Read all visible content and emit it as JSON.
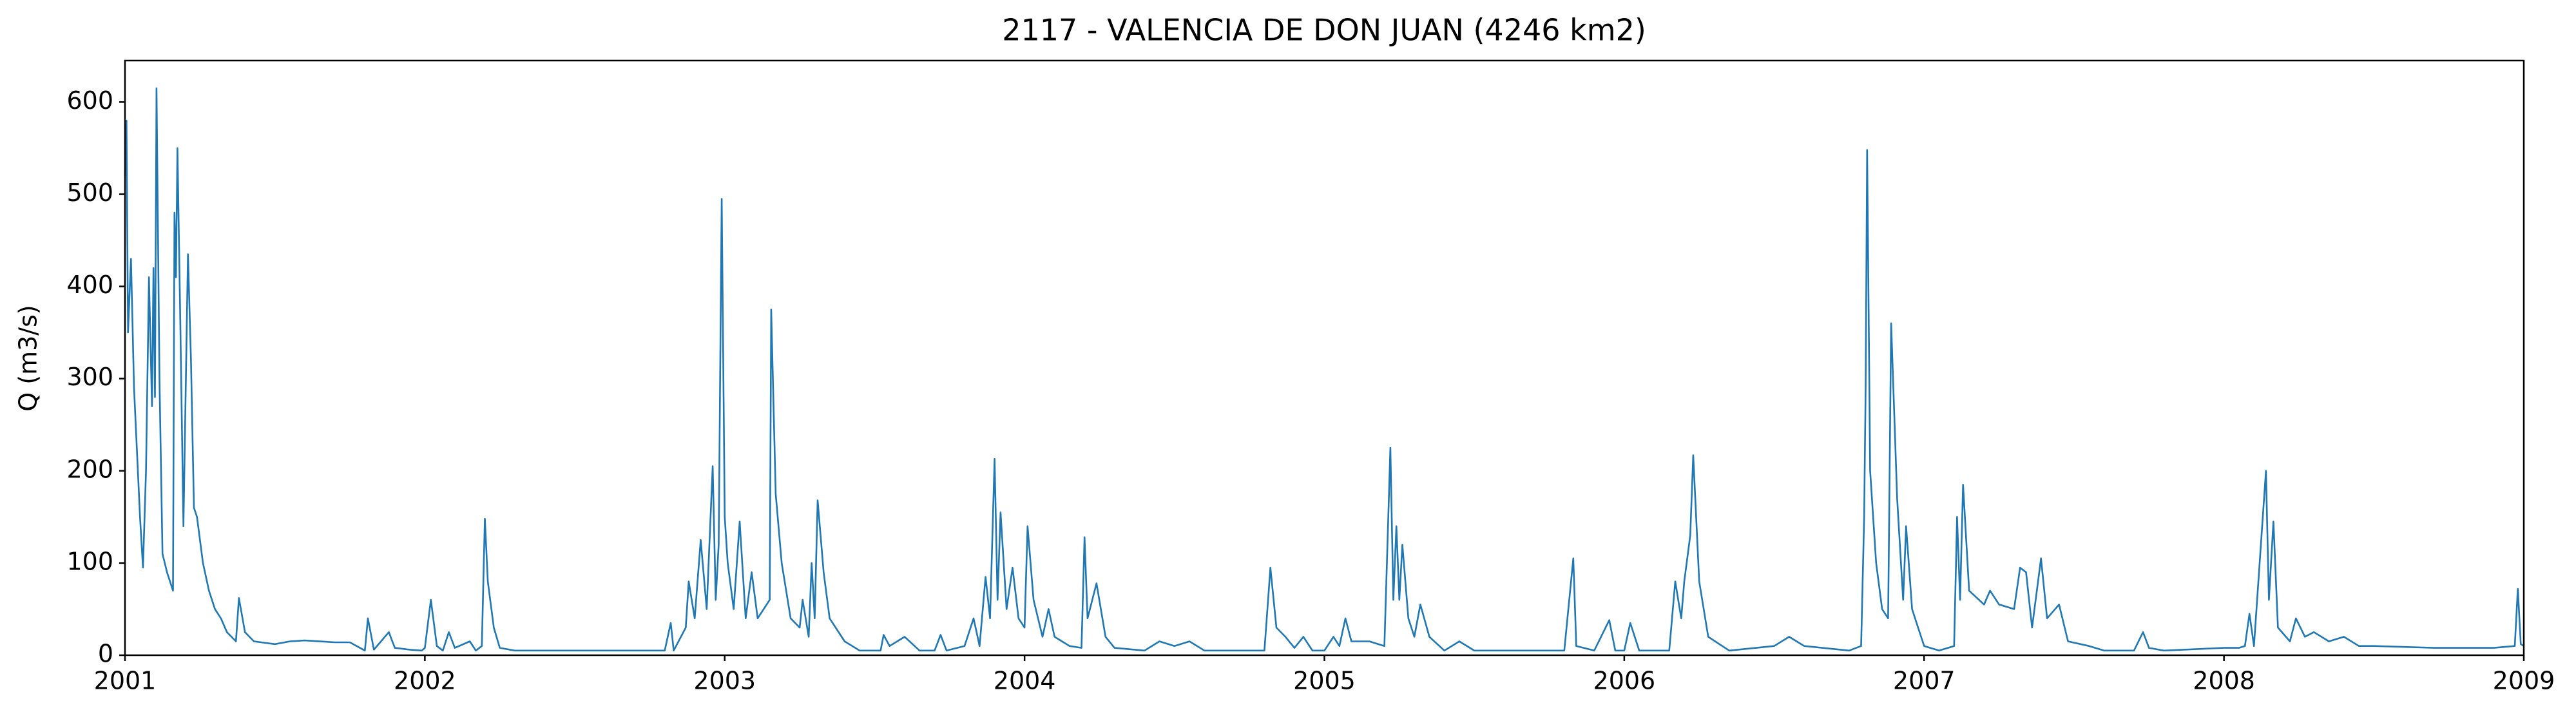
{
  "chart_data": {
    "type": "line",
    "title": "2117 - VALENCIA DE DON JUAN (4246 km2)",
    "ylabel": "Q (m3/s)",
    "x": [
      2001.0,
      2001.005,
      2001.01,
      2001.02,
      2001.03,
      2001.05,
      2001.06,
      2001.07,
      2001.08,
      2001.09,
      2001.095,
      2001.1,
      2001.105,
      2001.115,
      2001.125,
      2001.14,
      2001.16,
      2001.165,
      2001.17,
      2001.175,
      2001.185,
      2001.195,
      2001.21,
      2001.22,
      2001.23,
      2001.24,
      2001.26,
      2001.28,
      2001.3,
      2001.32,
      2001.34,
      2001.37,
      2001.38,
      2001.4,
      2001.43,
      2001.5,
      2001.55,
      2001.6,
      2001.7,
      2001.75,
      2001.8,
      2001.81,
      2001.83,
      2001.88,
      2001.9,
      2001.95,
      2001.99,
      2002.0,
      2002.02,
      2002.04,
      2002.06,
      2002.08,
      2002.1,
      2002.15,
      2002.17,
      2002.19,
      2002.2,
      2002.21,
      2002.23,
      2002.25,
      2002.3,
      2002.5,
      2002.8,
      2002.82,
      2002.83,
      2002.87,
      2002.88,
      2002.9,
      2002.92,
      2002.94,
      2002.96,
      2002.97,
      2002.98,
      2002.99,
      2003.0,
      2003.01,
      2003.03,
      2003.05,
      2003.07,
      2003.09,
      2003.11,
      2003.15,
      2003.155,
      2003.17,
      2003.19,
      2003.22,
      2003.25,
      2003.26,
      2003.28,
      2003.29,
      2003.3,
      2003.31,
      2003.33,
      2003.35,
      2003.4,
      2003.45,
      2003.52,
      2003.53,
      2003.55,
      2003.6,
      2003.65,
      2003.7,
      2003.72,
      2003.74,
      2003.8,
      2003.83,
      2003.85,
      2003.87,
      2003.885,
      2003.9,
      2003.91,
      2003.92,
      2003.94,
      2003.96,
      2003.98,
      2004.0,
      2004.01,
      2004.03,
      2004.06,
      2004.08,
      2004.1,
      2004.15,
      2004.19,
      2004.2,
      2004.21,
      2004.24,
      2004.27,
      2004.3,
      2004.4,
      2004.45,
      2004.5,
      2004.55,
      2004.6,
      2004.8,
      2004.82,
      2004.84,
      2004.87,
      2004.9,
      2004.93,
      2004.96,
      2005.0,
      2005.03,
      2005.05,
      2005.07,
      2005.09,
      2005.15,
      2005.2,
      2005.22,
      2005.23,
      2005.24,
      2005.25,
      2005.26,
      2005.28,
      2005.3,
      2005.32,
      2005.35,
      2005.4,
      2005.45,
      2005.5,
      2005.8,
      2005.83,
      2005.84,
      2005.9,
      2005.95,
      2005.97,
      2006.0,
      2006.02,
      2006.05,
      2006.15,
      2006.17,
      2006.19,
      2006.2,
      2006.22,
      2006.23,
      2006.25,
      2006.28,
      2006.35,
      2006.5,
      2006.55,
      2006.6,
      2006.75,
      2006.79,
      2006.8,
      2006.805,
      2006.81,
      2006.82,
      2006.84,
      2006.86,
      2006.88,
      2006.89,
      2006.91,
      2006.93,
      2006.94,
      2006.96,
      2006.98,
      2007.0,
      2007.05,
      2007.1,
      2007.11,
      2007.12,
      2007.13,
      2007.15,
      2007.2,
      2007.22,
      2007.25,
      2007.3,
      2007.32,
      2007.34,
      2007.36,
      2007.38,
      2007.39,
      2007.41,
      2007.45,
      2007.48,
      2007.55,
      2007.6,
      2007.7,
      2007.73,
      2007.75,
      2007.8,
      2008.0,
      2008.05,
      2008.07,
      2008.085,
      2008.1,
      2008.14,
      2008.15,
      2008.165,
      2008.18,
      2008.22,
      2008.24,
      2008.27,
      2008.3,
      2008.35,
      2008.4,
      2008.45,
      2008.5,
      2008.7,
      2008.9,
      2008.97,
      2008.98,
      2008.99,
      2009.0
    ],
    "series": [
      {
        "name": "Q",
        "color": "#1f77b4",
        "values": [
          520,
          580,
          350,
          430,
          290,
          150,
          95,
          200,
          410,
          270,
          420,
          280,
          615,
          300,
          110,
          90,
          70,
          480,
          410,
          550,
          350,
          140,
          435,
          320,
          160,
          150,
          100,
          70,
          50,
          40,
          25,
          15,
          62,
          25,
          15,
          12,
          15,
          16,
          14,
          14,
          5,
          40,
          6,
          25,
          8,
          6,
          5,
          8,
          60,
          10,
          5,
          25,
          8,
          15,
          5,
          10,
          148,
          80,
          30,
          8,
          5,
          5,
          5,
          35,
          5,
          30,
          80,
          40,
          125,
          50,
          205,
          60,
          120,
          495,
          150,
          100,
          50,
          145,
          40,
          90,
          40,
          60,
          375,
          175,
          100,
          40,
          30,
          60,
          20,
          100,
          40,
          168,
          90,
          40,
          15,
          5,
          5,
          22,
          10,
          20,
          5,
          5,
          22,
          5,
          10,
          40,
          10,
          85,
          40,
          213,
          60,
          155,
          50,
          95,
          40,
          30,
          140,
          60,
          20,
          50,
          20,
          10,
          8,
          128,
          40,
          78,
          20,
          8,
          5,
          15,
          10,
          15,
          5,
          5,
          95,
          30,
          20,
          8,
          20,
          5,
          5,
          20,
          10,
          40,
          15,
          15,
          10,
          225,
          60,
          140,
          60,
          120,
          40,
          20,
          55,
          20,
          5,
          15,
          5,
          5,
          105,
          10,
          5,
          38,
          5,
          5,
          35,
          5,
          5,
          80,
          40,
          80,
          130,
          217,
          80,
          20,
          5,
          10,
          20,
          10,
          5,
          10,
          150,
          290,
          548,
          200,
          100,
          50,
          40,
          360,
          170,
          60,
          140,
          50,
          30,
          10,
          5,
          10,
          150,
          60,
          185,
          70,
          55,
          70,
          55,
          50,
          95,
          90,
          30,
          80,
          105,
          40,
          55,
          15,
          10,
          5,
          5,
          25,
          8,
          5,
          8,
          8,
          10,
          45,
          10,
          200,
          60,
          145,
          30,
          15,
          40,
          20,
          25,
          15,
          20,
          10,
          10,
          8,
          8,
          10,
          72,
          12,
          10
        ]
      }
    ],
    "xlim": [
      2001,
      2009
    ],
    "xticks": [
      2001,
      2002,
      2003,
      2004,
      2005,
      2006,
      2007,
      2008,
      2009
    ],
    "ylim": [
      0,
      645
    ],
    "yticks": [
      0,
      100,
      200,
      300,
      400,
      500,
      600
    ],
    "grid": false
  }
}
